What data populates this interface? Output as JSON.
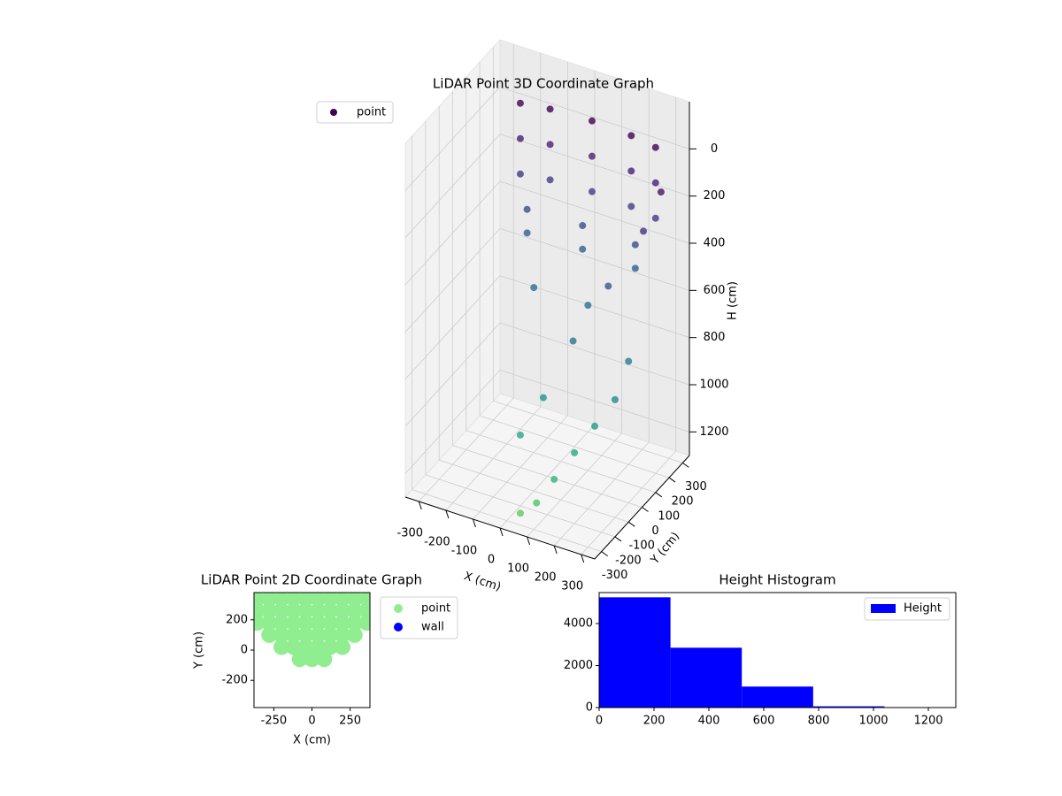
{
  "chart_data": [
    {
      "type": "scatter3d",
      "title": "LiDAR Point 3D Coordinate Graph",
      "xlabel": "X (cm)",
      "ylabel": "Y (cm)",
      "zlabel": "H (cm)",
      "xlim": [
        -350,
        350
      ],
      "ylim": [
        -350,
        350
      ],
      "zlim": [
        1300,
        -200
      ],
      "xticks": [
        -300,
        -200,
        -100,
        0,
        100,
        200,
        300
      ],
      "yticks": [
        -300,
        -200,
        -100,
        0,
        100,
        200,
        300
      ],
      "zticks": [
        0,
        200,
        400,
        600,
        800,
        1000,
        1200
      ],
      "grid": true,
      "cmap": "viridis",
      "legend": "upper left",
      "series": [
        {
          "name": "point",
          "color": "#440154",
          "x": [
            -250,
            -150,
            0,
            150,
            250,
            -250,
            -150,
            0,
            150,
            250,
            -250,
            -150,
            0,
            150,
            250,
            -200,
            0,
            200,
            -200,
            0,
            200,
            -100,
            100,
            300,
            300,
            250,
            200,
            150,
            100,
            50,
            320,
            280,
            200,
            120,
            60,
            0
          ],
          "y": [
            300,
            320,
            330,
            320,
            300,
            300,
            320,
            330,
            320,
            300,
            300,
            320,
            330,
            320,
            300,
            250,
            260,
            250,
            250,
            260,
            250,
            100,
            100,
            0,
            -100,
            -150,
            -200,
            -250,
            -280,
            -300,
            200,
            150,
            50,
            -50,
            -150,
            -200
          ],
          "z": [
            0,
            0,
            0,
            0,
            0,
            150,
            150,
            150,
            150,
            150,
            300,
            300,
            300,
            300,
            300,
            400,
            400,
            400,
            500,
            500,
            500,
            600,
            600,
            700,
            800,
            900,
            1000,
            1100,
            1200,
            1250,
            100,
            250,
            450,
            650,
            850,
            1000
          ]
        }
      ]
    },
    {
      "type": "scatter",
      "title": "LiDAR Point 2D Coordinate Graph",
      "xlabel": "X (cm)",
      "ylabel": "Y (cm)",
      "xlim": [
        -380,
        380
      ],
      "ylim": [
        -380,
        380
      ],
      "xticks": [
        -250,
        0,
        250
      ],
      "yticks": [
        -200,
        0,
        200
      ],
      "legend": "outside right",
      "series": [
        {
          "name": "point",
          "color": "#90ee90",
          "x": [
            -80,
            0,
            80,
            -200,
            -120,
            -40,
            40,
            120,
            200,
            -280,
            -200,
            -120,
            -40,
            40,
            120,
            200,
            280,
            -360,
            -280,
            -200,
            -120,
            -40,
            40,
            120,
            200,
            280,
            360,
            -360,
            -280,
            -200,
            -120,
            -40,
            40,
            120,
            200,
            280,
            360,
            -360,
            -280,
            -200,
            -120,
            -40,
            40,
            120,
            200,
            280,
            360
          ],
          "y": [
            -60,
            -60,
            -60,
            20,
            20,
            20,
            20,
            20,
            20,
            100,
            100,
            100,
            100,
            100,
            100,
            100,
            100,
            180,
            180,
            180,
            180,
            180,
            180,
            180,
            180,
            180,
            180,
            260,
            260,
            260,
            260,
            260,
            260,
            260,
            260,
            260,
            260,
            340,
            340,
            340,
            340,
            340,
            340,
            340,
            340,
            340,
            340
          ]
        },
        {
          "name": "wall",
          "color": "#0000ff",
          "x": [],
          "y": []
        }
      ]
    },
    {
      "type": "histogram",
      "title": "Height Histogram",
      "bins": [
        0,
        260,
        520,
        780,
        1040,
        1300
      ],
      "counts": [
        5250,
        2850,
        1000,
        60,
        20
      ],
      "name": "Height",
      "color": "#0000ff",
      "legend": "upper right",
      "xlim": [
        0,
        1300
      ],
      "ylim": [
        0,
        5475
      ],
      "xticks": [
        0,
        200,
        400,
        600,
        800,
        1000,
        1200
      ],
      "yticks": [
        0,
        2000,
        4000
      ]
    }
  ]
}
